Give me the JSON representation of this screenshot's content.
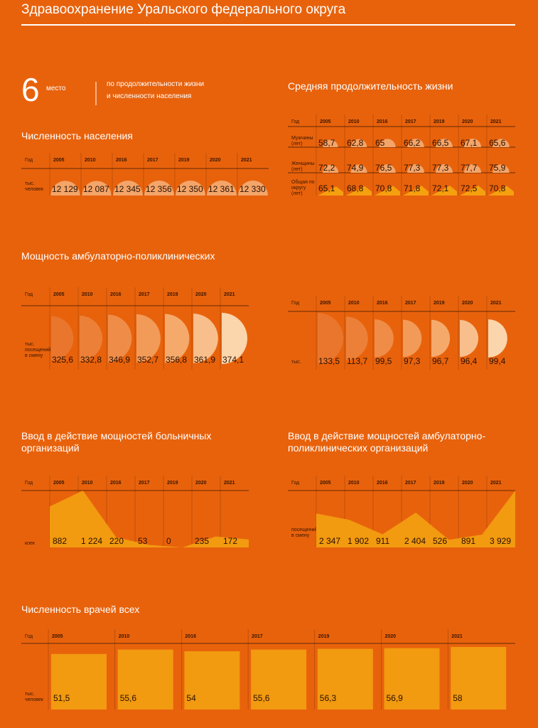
{
  "header": {
    "title": "Здравоохранение Уральского федерального округа"
  },
  "rank": {
    "value": 6,
    "unit": "место",
    "text": [
      "по продолжительности жизни",
      "и численности населения"
    ]
  },
  "chart_data": [
    {
      "type": "semicircle",
      "title": "Численность населения",
      "header_label": "Год",
      "row_label": "тыс. человек",
      "categories": [
        "2005",
        "2010",
        "2016",
        "2017",
        "2019",
        "2020",
        "2021"
      ],
      "values": [
        12129,
        12087,
        12345,
        12356,
        12350,
        12361,
        12330
      ],
      "value_labels": [
        "12 129",
        "12 087",
        "12 345",
        "12 356",
        "12 350",
        "12 361",
        "12 330"
      ],
      "color": "#f3a56a"
    },
    {
      "type": "table",
      "title": "Средняя продолжительность жизни",
      "header_label": "Год",
      "categories": [
        "2005",
        "2010",
        "2016",
        "2017",
        "2019",
        "2020",
        "2021"
      ],
      "series": [
        {
          "name": "Мужчины (лет)",
          "color": "#f3a56a",
          "values": [
            58.7,
            62.8,
            65,
            66.2,
            66.5,
            67.1,
            65.6
          ],
          "value_labels": [
            "58,7",
            "62,8",
            "65",
            "66,2",
            "66,5",
            "67,1",
            "65,6"
          ]
        },
        {
          "name": "Женщины (лет)",
          "color": "#f3a56a",
          "values": [
            72.2,
            74.9,
            76.5,
            77.3,
            77.3,
            77.7,
            75.9
          ],
          "value_labels": [
            "72,2",
            "74,9",
            "76,5",
            "77,3",
            "77,3",
            "77,7",
            "75,9"
          ]
        },
        {
          "name": "Общая по округу (лет)",
          "color": "#f5a00f",
          "values": [
            65.1,
            68.8,
            70.8,
            71.8,
            72.1,
            72.5,
            70.8
          ],
          "value_labels": [
            "65,1",
            "68,8",
            "70,8",
            "71,8",
            "72,1",
            "72,5",
            "70,8"
          ]
        }
      ]
    },
    {
      "type": "halfdisc",
      "title": "Мощность амбулаторно-поликлинических",
      "header_label": "Год",
      "row_label": "тыс. посещений в смену",
      "categories": [
        "2005",
        "2010",
        "2016",
        "2017",
        "2019",
        "2020",
        "2021"
      ],
      "values": [
        325.6,
        332.8,
        346.9,
        352.7,
        356.8,
        361.9,
        374.1
      ],
      "value_labels": [
        "325,6",
        "332,8",
        "346,9",
        "352,7",
        "356,8",
        "361,9",
        "374,1"
      ],
      "colors": [
        "#e9762c",
        "#ec8038",
        "#ef8c48",
        "#f29a58",
        "#f5aa6c",
        "#f8bf8c",
        "#fbd5ac"
      ]
    },
    {
      "type": "halfdisc",
      "header_label": "Год",
      "row_label": "тыс.",
      "categories": [
        "2005",
        "2010",
        "2016",
        "2017",
        "2019",
        "2020",
        "2021"
      ],
      "values": [
        133.5,
        113.7,
        99.5,
        97.3,
        96.7,
        96.4,
        99.4
      ],
      "value_labels": [
        "133,5",
        "113,7",
        "99,5",
        "97,3",
        "96,7",
        "96,4",
        "99,4"
      ],
      "colors": [
        "#e9762c",
        "#ec8038",
        "#ef8c48",
        "#f29a58",
        "#f5aa6c",
        "#f8bf8c",
        "#fbd5ac"
      ]
    },
    {
      "type": "area",
      "title": "Ввод в действие мощностей больничных организаций",
      "header_label": "Год",
      "row_label": "коек",
      "categories": [
        "2005",
        "2010",
        "2016",
        "2017",
        "2019",
        "2020",
        "2021"
      ],
      "values": [
        882,
        1224,
        220,
        53,
        0,
        235,
        172
      ],
      "value_labels": [
        "882",
        "1 224",
        "220",
        "53",
        "0",
        "235",
        "172"
      ],
      "color": "#f29a10"
    },
    {
      "type": "area",
      "title": "Ввод в действие мощностей амбулаторно-поликлинических организаций",
      "header_label": "Год",
      "row_label": "посещений в смену",
      "categories": [
        "2005",
        "2010",
        "2016",
        "2017",
        "2019",
        "2020",
        "2021"
      ],
      "values": [
        2347,
        1902,
        911,
        2404,
        526,
        891,
        3929
      ],
      "value_labels": [
        "2 347",
        "1 902",
        "911",
        "2 404",
        "526",
        "891",
        "3 929"
      ],
      "color": "#f29a10"
    },
    {
      "type": "bar",
      "title": "Численность врачей всех",
      "header_label": "Год",
      "row_label": "тыс. человек",
      "categories": [
        "2005",
        "2010",
        "2016",
        "2017",
        "2019",
        "2020",
        "2021"
      ],
      "values": [
        51.5,
        55.6,
        54,
        55.6,
        56.3,
        56.9,
        58
      ],
      "value_labels": [
        "51,5",
        "55,6",
        "54",
        "55,6",
        "56,3",
        "56,9",
        "58"
      ],
      "color": "#f29a10"
    }
  ]
}
